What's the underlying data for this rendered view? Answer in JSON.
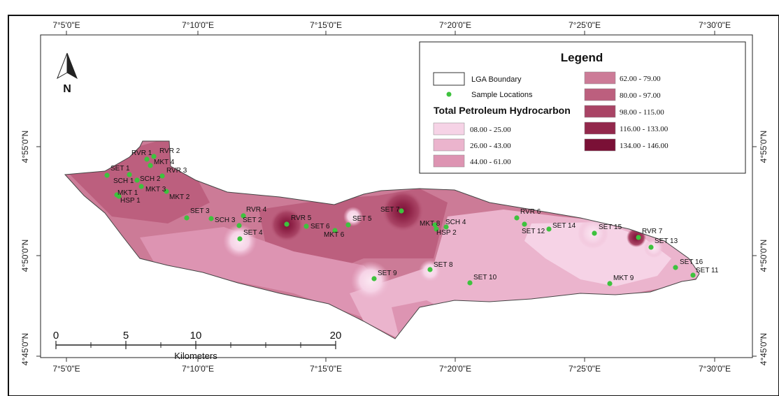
{
  "map": {
    "x_ticks": [
      "7°5'0\"E",
      "7°10'0\"E",
      "7°15'0\"E",
      "7°20'0\"E",
      "7°25'0\"E",
      "7°30'0\"E"
    ],
    "y_ticks": [
      "4°55'0\"N",
      "4°50'0\"N",
      "4°45'0\"N"
    ]
  },
  "legend": {
    "title": "Legend",
    "lga_boundary": "LGA Boundary",
    "sample_locations": "Sample Locations",
    "heading": "Total Petroleum Hydrocarbon",
    "classes": [
      {
        "label": "08.00 - 25.00",
        "color": "#f6d3e6"
      },
      {
        "label": "26.00 - 43.00",
        "color": "#ebb4cd"
      },
      {
        "label": "44.00 - 61.00",
        "color": "#dd94b2"
      },
      {
        "label": "62.00 - 79.00",
        "color": "#cc7b97"
      },
      {
        "label": "80.00 - 97.00",
        "color": "#bc5f7e"
      },
      {
        "label": "98.00 - 115.00",
        "color": "#a94465"
      },
      {
        "label": "116.00 - 133.00",
        "color": "#93284c"
      },
      {
        "label": "134.00 - 146.00",
        "color": "#7a1036"
      }
    ]
  },
  "scale_bar": {
    "labels": [
      "0",
      "5",
      "10",
      "20"
    ],
    "unit": "Kilometers"
  },
  "north_arrow": {
    "label": "N",
    "icon": "north-arrow-icon"
  },
  "sample_point_color": "#3ec23e",
  "sites": [
    {
      "label": "RVR 1"
    },
    {
      "label": "RVR 2"
    },
    {
      "label": "MKT 4"
    },
    {
      "label": "RVR 3"
    },
    {
      "label": "SET 1"
    },
    {
      "label": "SCH 1"
    },
    {
      "label": "SCH 2"
    },
    {
      "label": "MKT 3"
    },
    {
      "label": "MKT 1"
    },
    {
      "label": "HSP 1"
    },
    {
      "label": "MKT 2"
    },
    {
      "label": "SET 3"
    },
    {
      "label": "RVR 4"
    },
    {
      "label": "SCH 3"
    },
    {
      "label": "SET 2"
    },
    {
      "label": "SET 4"
    },
    {
      "label": "RVR 5"
    },
    {
      "label": "SET 6"
    },
    {
      "label": "MKT 6"
    },
    {
      "label": "SET 5"
    },
    {
      "label": "SET 7"
    },
    {
      "label": "MKT 8"
    },
    {
      "label": "SCH 4"
    },
    {
      "label": "HSP 2"
    },
    {
      "label": "SET 9"
    },
    {
      "label": "SET 8"
    },
    {
      "label": "SET 10"
    },
    {
      "label": "RVR 6"
    },
    {
      "label": "SET 12"
    },
    {
      "label": "SET 14"
    },
    {
      "label": "SET 15"
    },
    {
      "label": "RVR 7"
    },
    {
      "label": "SET 13"
    },
    {
      "label": "SET 16"
    },
    {
      "label": "SET 11"
    },
    {
      "label": "MKT 9"
    }
  ]
}
